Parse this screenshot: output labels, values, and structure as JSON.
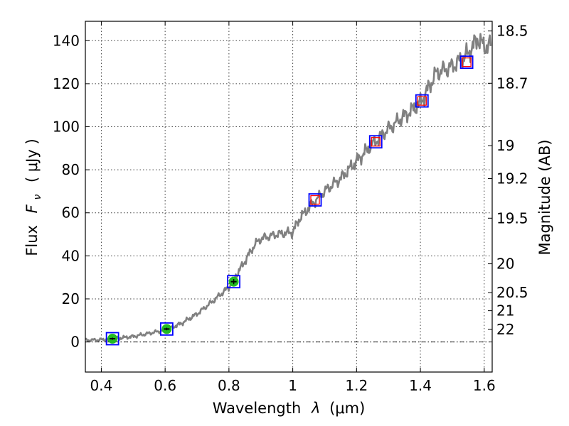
{
  "chart_data": {
    "type": "line",
    "xlabel": "Wavelength",
    "xlabel_symbol": "λ",
    "xlabel_units": "(μm)",
    "ylabel": "Flux",
    "ylabel_symbol": "F",
    "ylabel_subscript": "ν",
    "ylabel_units": "( μJy )",
    "y2label": "Magnitude (AB)",
    "xlim": [
      0.35,
      1.625
    ],
    "ylim": [
      -14,
      149
    ],
    "grid": true,
    "x_ticks": [
      0.4,
      0.6,
      0.8,
      1.0,
      1.2,
      1.4,
      1.6
    ],
    "x_tick_labels": [
      "0.4",
      "0.6",
      "0.8",
      "1",
      "1.2",
      "1.4",
      "1.6"
    ],
    "y_ticks": [
      0,
      20,
      40,
      60,
      80,
      100,
      120,
      140
    ],
    "y_tick_labels": [
      "0",
      "20",
      "40",
      "60",
      "80",
      "100",
      "120",
      "140"
    ],
    "y2_ticks": [
      {
        "label": "18.5",
        "flux": 144.5
      },
      {
        "label": "18.7",
        "flux": 120.2
      },
      {
        "label": "19",
        "flux": 91.2
      },
      {
        "label": "19.2",
        "flux": 75.9
      },
      {
        "label": "19.5",
        "flux": 57.5
      },
      {
        "label": "20",
        "flux": 36.3
      },
      {
        "label": "20.5",
        "flux": 22.9
      },
      {
        "label": "21",
        "flux": 14.5
      },
      {
        "label": "22",
        "flux": 5.8
      }
    ],
    "zero_line": 0,
    "spectrum_color": "#808080",
    "spectrum_anchors": [
      [
        0.35,
        0.8
      ],
      [
        0.4,
        1.0
      ],
      [
        0.44,
        1.5
      ],
      [
        0.5,
        2.5
      ],
      [
        0.55,
        4.0
      ],
      [
        0.6,
        5.5
      ],
      [
        0.65,
        8.5
      ],
      [
        0.7,
        13.0
      ],
      [
        0.75,
        19.0
      ],
      [
        0.8,
        25.5
      ],
      [
        0.85,
        37.5
      ],
      [
        0.88,
        45.0
      ],
      [
        0.9,
        48.0
      ],
      [
        0.95,
        50.0
      ],
      [
        1.0,
        51.0
      ],
      [
        1.02,
        57.0
      ],
      [
        1.06,
        64.0
      ],
      [
        1.1,
        70.0
      ],
      [
        1.15,
        76.0
      ],
      [
        1.2,
        84.0
      ],
      [
        1.25,
        92.0
      ],
      [
        1.3,
        99.0
      ],
      [
        1.35,
        105.0
      ],
      [
        1.4,
        111.0
      ],
      [
        1.45,
        125.0
      ],
      [
        1.5,
        128.0
      ],
      [
        1.55,
        134.0
      ],
      [
        1.58,
        141.0
      ],
      [
        1.6,
        137.0
      ],
      [
        1.62,
        138.0
      ]
    ],
    "photometry": [
      {
        "x": 0.435,
        "y": 1.5,
        "model": 1.5,
        "kind": "observed",
        "err": 0.5
      },
      {
        "x": 0.605,
        "y": 6.0,
        "model": 6.0,
        "kind": "observed",
        "err": 0.6
      },
      {
        "x": 0.815,
        "y": 28.0,
        "model": 28.0,
        "kind": "observed",
        "err": 1.2
      },
      {
        "x": 1.07,
        "y": 66.0,
        "model": 66.0,
        "kind": "predicted",
        "err": 0
      },
      {
        "x": 1.26,
        "y": 93.0,
        "model": 93.0,
        "kind": "predicted",
        "err": 0
      },
      {
        "x": 1.405,
        "y": 112.0,
        "model": 112.0,
        "kind": "predicted",
        "err": 0
      },
      {
        "x": 1.545,
        "y": 130.0,
        "model": 130.0,
        "kind": "predicted",
        "err": 0
      }
    ],
    "colors": {
      "model_box": "#0000ff",
      "observed_fill": "#22bb22",
      "predicted_box": "#ff0000",
      "axis": "#000000"
    }
  }
}
